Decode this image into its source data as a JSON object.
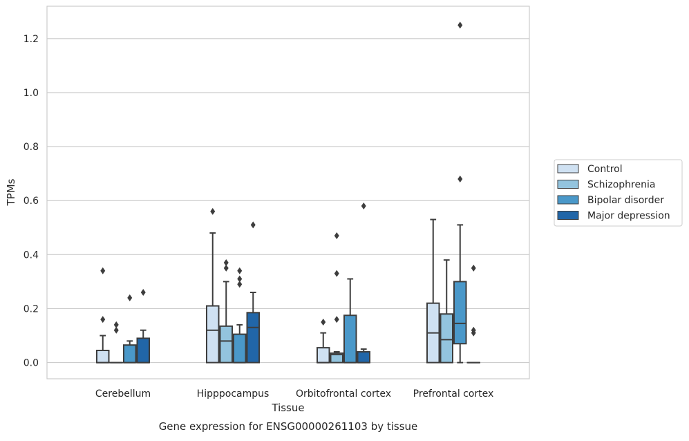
{
  "chart_data": {
    "type": "box",
    "xlabel": "Tissue",
    "ylabel": "TPMs",
    "caption": "Gene expression for ENSG00000261103 by tissue",
    "ylim": [
      -0.06,
      1.32
    ],
    "yticks": [
      "0.0",
      "0.2",
      "0.4",
      "0.6",
      "0.8",
      "1.0",
      "1.2"
    ],
    "grid": "horizontal",
    "legend_position": "right",
    "categories": [
      "Cerebellum",
      "Hipppocampus",
      "Orbitofrontal cortex",
      "Prefrontal cortex"
    ],
    "series": [
      {
        "name": "Control",
        "color": "#cfe1f2",
        "boxes": [
          {
            "q1": 0.0,
            "median": 0.0,
            "q3": 0.045,
            "whisker_low": 0.0,
            "whisker_high": 0.1,
            "outliers": [
              0.34,
              0.16
            ]
          },
          {
            "q1": 0.0,
            "median": 0.12,
            "q3": 0.21,
            "whisker_low": 0.0,
            "whisker_high": 0.48,
            "outliers": [
              0.56
            ]
          },
          {
            "q1": 0.0,
            "median": 0.0,
            "q3": 0.055,
            "whisker_low": 0.0,
            "whisker_high": 0.11,
            "outliers": [
              0.15
            ]
          },
          {
            "q1": 0.0,
            "median": 0.11,
            "q3": 0.22,
            "whisker_low": 0.0,
            "whisker_high": 0.53,
            "outliers": []
          }
        ]
      },
      {
        "name": "Schizophrenia",
        "color": "#93c4de",
        "boxes": [
          {
            "q1": 0.0,
            "median": 0.0,
            "q3": 0.0,
            "whisker_low": 0.0,
            "whisker_high": 0.0,
            "outliers": [
              0.14,
              0.12
            ]
          },
          {
            "q1": 0.0,
            "median": 0.08,
            "q3": 0.135,
            "whisker_low": 0.0,
            "whisker_high": 0.3,
            "outliers": [
              0.37,
              0.35
            ]
          },
          {
            "q1": 0.0,
            "median": 0.03,
            "q3": 0.035,
            "whisker_low": 0.0,
            "whisker_high": 0.04,
            "outliers": [
              0.47,
              0.33,
              0.16
            ]
          },
          {
            "q1": 0.0,
            "median": 0.085,
            "q3": 0.18,
            "whisker_low": 0.0,
            "whisker_high": 0.38,
            "outliers": []
          }
        ]
      },
      {
        "name": "Bipolar disorder",
        "color": "#4a98c9",
        "boxes": [
          {
            "q1": 0.0,
            "median": 0.0,
            "q3": 0.065,
            "whisker_low": 0.0,
            "whisker_high": 0.08,
            "outliers": [
              0.24
            ]
          },
          {
            "q1": 0.0,
            "median": 0.0,
            "q3": 0.105,
            "whisker_low": 0.0,
            "whisker_high": 0.14,
            "outliers": [
              0.34,
              0.31,
              0.29
            ]
          },
          {
            "q1": 0.0,
            "median": 0.0,
            "q3": 0.175,
            "whisker_low": 0.0,
            "whisker_high": 0.31,
            "outliers": []
          },
          {
            "q1": 0.07,
            "median": 0.145,
            "q3": 0.3,
            "whisker_low": 0.0,
            "whisker_high": 0.51,
            "outliers": [
              1.25,
              0.68
            ]
          }
        ]
      },
      {
        "name": "Major depression",
        "color": "#2166a8",
        "boxes": [
          {
            "q1": 0.0,
            "median": 0.0,
            "q3": 0.09,
            "whisker_low": 0.0,
            "whisker_high": 0.12,
            "outliers": [
              0.26
            ]
          },
          {
            "q1": 0.0,
            "median": 0.13,
            "q3": 0.185,
            "whisker_low": 0.0,
            "whisker_high": 0.26,
            "outliers": [
              0.51
            ]
          },
          {
            "q1": 0.0,
            "median": 0.0,
            "q3": 0.04,
            "whisker_low": 0.0,
            "whisker_high": 0.05,
            "outliers": [
              0.58
            ]
          },
          {
            "q1": 0.0,
            "median": 0.0,
            "q3": 0.0,
            "whisker_low": 0.0,
            "whisker_high": 0.0,
            "outliers": [
              0.35,
              0.12,
              0.11
            ]
          }
        ]
      }
    ]
  }
}
